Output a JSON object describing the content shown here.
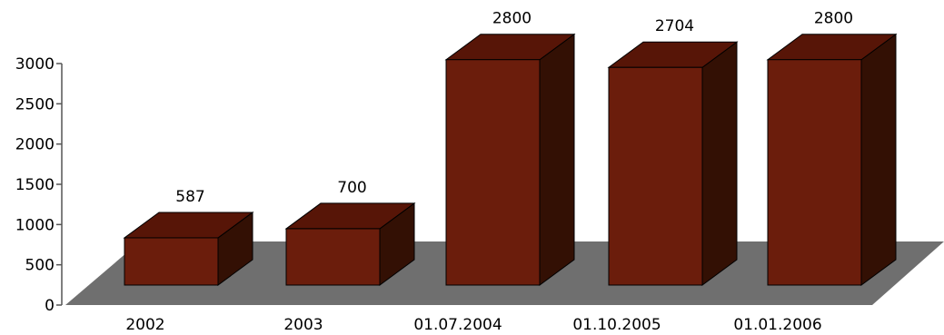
{
  "chart_data": {
    "type": "bar",
    "bar_style": "3d-column",
    "categories": [
      "2002",
      "2003",
      "01.07.2004",
      "01.10.2005",
      "01.01.2006"
    ],
    "values": [
      587,
      700,
      2800,
      2704,
      2800
    ],
    "data_labels": [
      "587",
      "700",
      "2800",
      "2704",
      "2800"
    ],
    "yticks": [
      "0",
      "500",
      "1000",
      "1500",
      "2000",
      "2500",
      "3000"
    ],
    "ylim": [
      0,
      3000
    ],
    "grid": false,
    "legend": "none",
    "colors": {
      "bar_front": "#6b1d0c",
      "bar_top": "#571507",
      "bar_side": "#331004",
      "bar_outline": "#000000",
      "floor": "#6f6f6f",
      "axis": "#555555",
      "background": "#ffffff"
    }
  }
}
